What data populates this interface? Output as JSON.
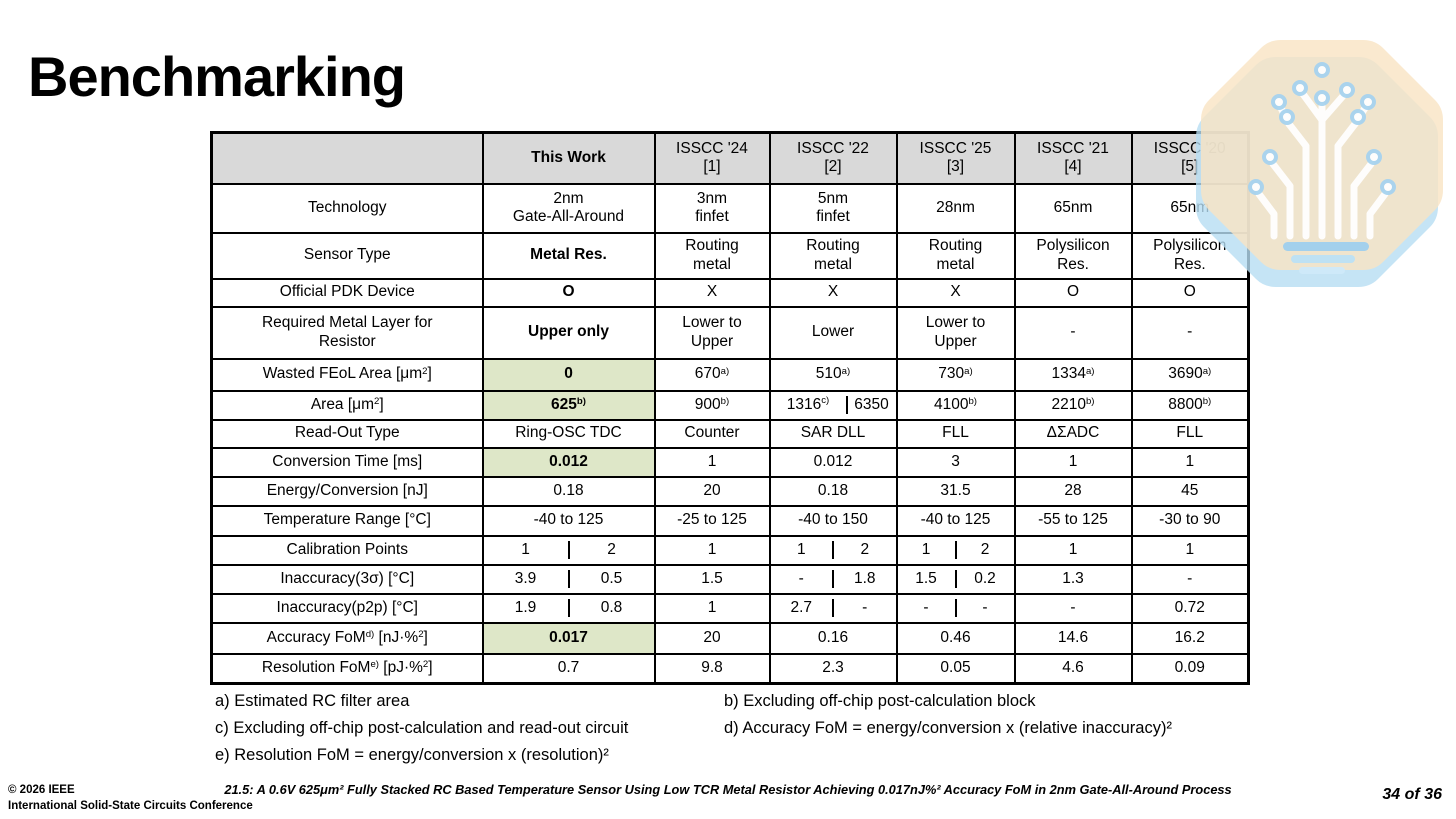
{
  "slide": {
    "title": "Benchmarking"
  },
  "colors": {
    "header_gray": "#D9D9D9",
    "highlight_green": "#DEE7C8",
    "logo_peach": "#F9E3C3",
    "logo_shadow_blue": "#B7DDF3",
    "logo_dot_blue": "#A7D3EF",
    "logo_bar_blue": "#9FCFEE"
  },
  "table": {
    "columns": [
      {
        "label": "This Work",
        "ref": "",
        "bold": true
      },
      {
        "label": "ISSCC '24",
        "ref": "[1]",
        "bold": false
      },
      {
        "label": "ISSCC '22",
        "ref": "[2]",
        "bold": false
      },
      {
        "label": "ISSCC '25",
        "ref": "[3]",
        "bold": false
      },
      {
        "label": "ISSCC '21",
        "ref": "[4]",
        "bold": false
      },
      {
        "label": "ISSCC '20",
        "ref": "[5]",
        "bold": false
      }
    ],
    "rows": [
      {
        "label": [
          "Technology"
        ],
        "cells": [
          {
            "v": [
              "2nm\nGate-All-Around"
            ]
          },
          {
            "v": [
              "3nm\nfinfet"
            ]
          },
          {
            "v": [
              "5nm\nfinfet"
            ]
          },
          {
            "v": [
              "28nm"
            ]
          },
          {
            "v": [
              "65nm"
            ]
          },
          {
            "v": [
              "65nm"
            ]
          }
        ]
      },
      {
        "label": [
          "Sensor Type"
        ],
        "cells": [
          {
            "v": [
              "Metal Res."
            ],
            "bold": true
          },
          {
            "v": [
              "Routing\nmetal"
            ]
          },
          {
            "v": [
              "Routing\nmetal"
            ]
          },
          {
            "v": [
              "Routing\nmetal"
            ]
          },
          {
            "v": [
              "Polysilicon\nRes."
            ]
          },
          {
            "v": [
              "Polysilicon\nRes."
            ]
          }
        ]
      },
      {
        "label": [
          "Official PDK Device"
        ],
        "cells": [
          {
            "v": [
              "O"
            ],
            "bold": true
          },
          {
            "v": [
              "X"
            ]
          },
          {
            "v": [
              "X"
            ]
          },
          {
            "v": [
              "X"
            ]
          },
          {
            "v": [
              "O"
            ]
          },
          {
            "v": [
              "O"
            ]
          }
        ]
      },
      {
        "label": [
          "Required Metal Layer for\nResistor"
        ],
        "cells": [
          {
            "v": [
              "Upper only"
            ],
            "bold": true
          },
          {
            "v": [
              "Lower to\nUpper"
            ]
          },
          {
            "v": [
              "Lower"
            ]
          },
          {
            "v": [
              "Lower to\nUpper"
            ]
          },
          {
            "v": [
              "-"
            ]
          },
          {
            "v": [
              "-"
            ]
          }
        ]
      },
      {
        "label": [
          "Wasted FEoL Area [μm",
          {
            "s": "2"
          },
          "]"
        ],
        "cells": [
          {
            "v": [
              "0"
            ],
            "bold": true,
            "green": true
          },
          {
            "v": [
              "670",
              {
                "s": "a)"
              }
            ]
          },
          {
            "v": [
              "510",
              {
                "s": "a)"
              }
            ]
          },
          {
            "v": [
              "730",
              {
                "s": "a)"
              }
            ]
          },
          {
            "v": [
              "1334",
              {
                "s": "a)"
              }
            ]
          },
          {
            "v": [
              "3690",
              {
                "s": "a)"
              }
            ]
          }
        ]
      },
      {
        "label": [
          "Area [μm",
          {
            "s": "2"
          },
          "]"
        ],
        "cells": [
          {
            "v": [
              "625",
              {
                "s": "b)"
              }
            ],
            "bold": true,
            "green": true
          },
          {
            "v": [
              "900",
              {
                "s": "b)"
              }
            ]
          },
          {
            "split": [
              {
                "v": [
                  "1316",
                  {
                    "s": "c)"
                  }
                ]
              },
              {
                "v": [
                  "6350"
                ]
              }
            ],
            "ratio": [
              61,
              39
            ]
          },
          {
            "v": [
              "4100",
              {
                "s": "b)"
              }
            ]
          },
          {
            "v": [
              "2210",
              {
                "s": "b)"
              }
            ]
          },
          {
            "v": [
              "8800",
              {
                "s": "b)"
              }
            ]
          }
        ]
      },
      {
        "label": [
          "Read-Out Type"
        ],
        "cells": [
          {
            "v": [
              "Ring-OSC TDC"
            ]
          },
          {
            "v": [
              "Counter"
            ]
          },
          {
            "v": [
              "SAR DLL"
            ]
          },
          {
            "v": [
              "FLL"
            ]
          },
          {
            "v": [
              "ΔΣADC"
            ]
          },
          {
            "v": [
              "FLL"
            ]
          }
        ]
      },
      {
        "label": [
          "Conversion Time [ms]"
        ],
        "cells": [
          {
            "v": [
              "0.012"
            ],
            "bold": true,
            "green": true
          },
          {
            "v": [
              "1"
            ]
          },
          {
            "v": [
              "0.012"
            ]
          },
          {
            "v": [
              "3"
            ]
          },
          {
            "v": [
              "1"
            ]
          },
          {
            "v": [
              "1"
            ]
          }
        ]
      },
      {
        "label": [
          "Energy/Conversion [nJ]"
        ],
        "cells": [
          {
            "v": [
              "0.18"
            ]
          },
          {
            "v": [
              "20"
            ]
          },
          {
            "v": [
              "0.18"
            ]
          },
          {
            "v": [
              "31.5"
            ]
          },
          {
            "v": [
              "28"
            ]
          },
          {
            "v": [
              "45"
            ]
          }
        ]
      },
      {
        "label": [
          "Temperature Range [°C]"
        ],
        "cells": [
          {
            "v": [
              "-40 to 125"
            ]
          },
          {
            "v": [
              "-25 to 125"
            ]
          },
          {
            "v": [
              "-40 to 150"
            ]
          },
          {
            "v": [
              "-40 to 125"
            ]
          },
          {
            "v": [
              "-55 to 125"
            ]
          },
          {
            "v": [
              "-30 to 90"
            ]
          }
        ]
      },
      {
        "label": [
          "Calibration Points"
        ],
        "cells": [
          {
            "split": [
              {
                "v": [
                  "1"
                ]
              },
              {
                "v": [
                  "2"
                ]
              }
            ]
          },
          {
            "v": [
              "1"
            ]
          },
          {
            "split": [
              {
                "v": [
                  "1"
                ]
              },
              {
                "v": [
                  "2"
                ]
              }
            ]
          },
          {
            "split": [
              {
                "v": [
                  "1"
                ]
              },
              {
                "v": [
                  "2"
                ]
              }
            ]
          },
          {
            "v": [
              "1"
            ]
          },
          {
            "v": [
              "1"
            ]
          }
        ]
      },
      {
        "label": [
          "Inaccuracy(3σ) [°C]"
        ],
        "cells": [
          {
            "split": [
              {
                "v": [
                  "3.9"
                ]
              },
              {
                "v": [
                  "0.5"
                ]
              }
            ]
          },
          {
            "v": [
              "1.5"
            ]
          },
          {
            "split": [
              {
                "v": [
                  "-"
                ]
              },
              {
                "v": [
                  "1.8"
                ]
              }
            ]
          },
          {
            "split": [
              {
                "v": [
                  "1.5"
                ]
              },
              {
                "v": [
                  "0.2"
                ]
              }
            ]
          },
          {
            "v": [
              "1.3"
            ]
          },
          {
            "v": [
              "-"
            ]
          }
        ]
      },
      {
        "label": [
          "Inaccuracy(p2p) [°C]"
        ],
        "cells": [
          {
            "split": [
              {
                "v": [
                  "1.9"
                ]
              },
              {
                "v": [
                  "0.8"
                ]
              }
            ]
          },
          {
            "v": [
              "1"
            ]
          },
          {
            "split": [
              {
                "v": [
                  "2.7"
                ]
              },
              {
                "v": [
                  "-"
                ]
              }
            ]
          },
          {
            "split": [
              {
                "v": [
                  "-"
                ]
              },
              {
                "v": [
                  "-"
                ]
              }
            ]
          },
          {
            "v": [
              "-"
            ]
          },
          {
            "v": [
              "0.72"
            ]
          }
        ]
      },
      {
        "label": [
          "Accuracy FoM",
          {
            "s": "d)"
          },
          " [nJ·%",
          {
            "s": "2"
          },
          "]"
        ],
        "cells": [
          {
            "v": [
              "0.017"
            ],
            "bold": true,
            "green": true
          },
          {
            "v": [
              "20"
            ]
          },
          {
            "v": [
              "0.16"
            ]
          },
          {
            "v": [
              "0.46"
            ]
          },
          {
            "v": [
              "14.6"
            ]
          },
          {
            "v": [
              "16.2"
            ]
          }
        ]
      },
      {
        "label": [
          "Resolution FoM",
          {
            "s": "e)"
          },
          " [pJ·%",
          {
            "s": "2"
          },
          "]"
        ],
        "cells": [
          {
            "v": [
              "0.7"
            ]
          },
          {
            "v": [
              "9.8"
            ]
          },
          {
            "v": [
              "2.3"
            ]
          },
          {
            "v": [
              "0.05"
            ]
          },
          {
            "v": [
              "4.6"
            ]
          },
          {
            "v": [
              "0.09"
            ]
          }
        ]
      }
    ]
  },
  "footnotes": {
    "a": "a) Estimated RC filter area",
    "b": "b) Excluding off-chip post-calculation block",
    "c": "c) Excluding off-chip post-calculation and read-out circuit",
    "d": "d) Accuracy FoM = energy/conversion x (relative inaccuracy)²",
    "e": "e) Resolution FoM = energy/conversion x (resolution)²"
  },
  "footer": {
    "copyright": "© 2026 IEEE",
    "conference": "International Solid-State Circuits Conference",
    "paper_title": "21.5: A 0.6V 625μm² Fully Stacked RC Based Temperature Sensor Using Low TCR Metal Resistor Achieving 0.017nJ%² Accuracy FoM in 2nm Gate-All-Around Process",
    "page": "34 of 36"
  }
}
